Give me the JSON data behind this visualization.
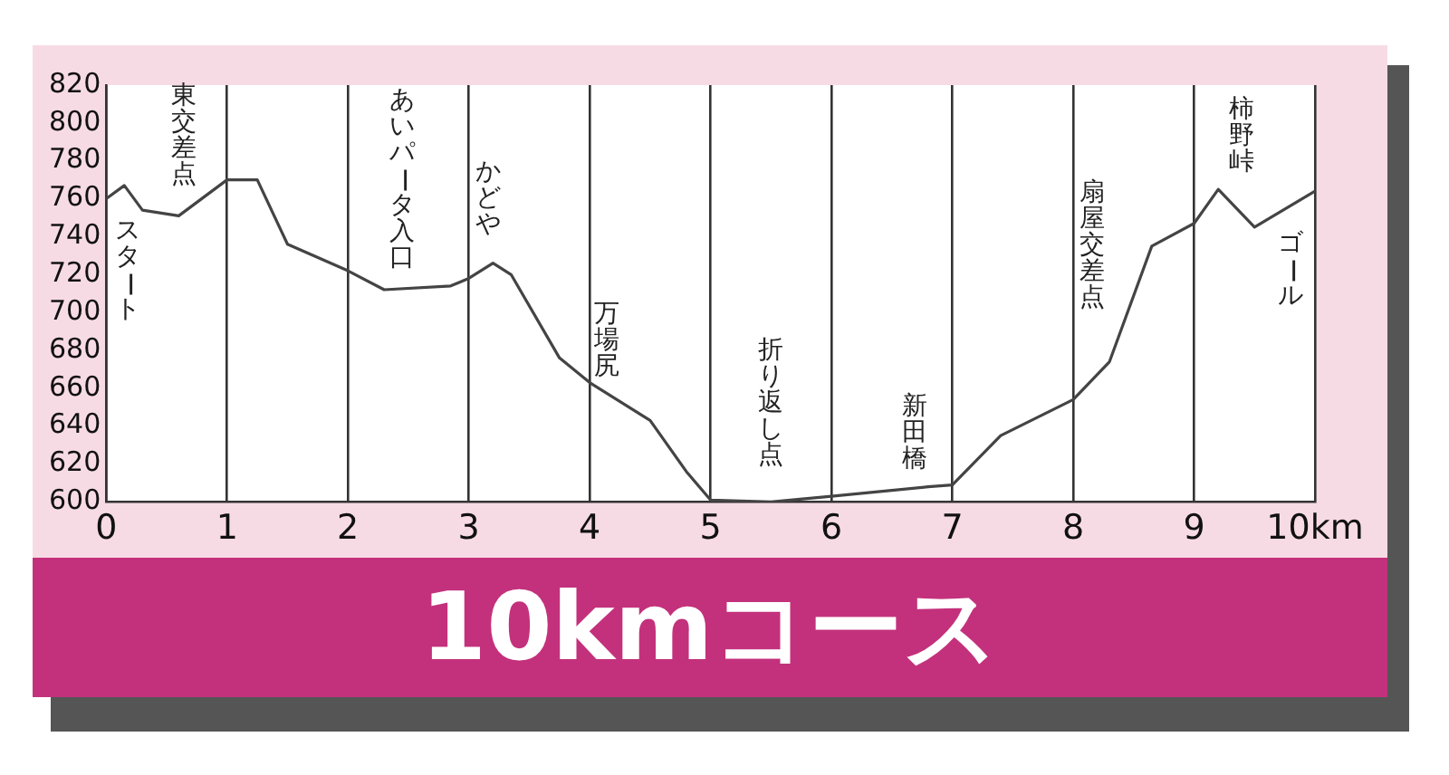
{
  "chart_data": {
    "type": "line",
    "title": "10kmコース",
    "x": [
      0,
      0.15,
      0.3,
      0.6,
      1.0,
      1.25,
      1.5,
      2.0,
      2.3,
      2.85,
      3.0,
      3.2,
      3.35,
      3.75,
      4.0,
      4.5,
      4.8,
      5.0,
      5.5,
      6.0,
      6.8,
      7.0,
      7.4,
      8.0,
      8.3,
      8.65,
      9.0,
      9.2,
      9.5,
      10.0
    ],
    "series": [
      {
        "color": "#444444",
        "values": [
          760,
          767,
          754,
          751,
          770,
          770,
          736,
          722,
          712,
          714,
          718,
          726,
          720,
          676,
          663,
          643,
          616,
          601,
          600,
          603,
          608,
          609,
          635,
          654,
          674,
          735,
          747,
          765,
          745,
          764
        ]
      }
    ],
    "xlim": [
      0,
      10
    ],
    "xticks": [
      0,
      1,
      2,
      3,
      4,
      5,
      6,
      7,
      8,
      9,
      {
        "value": 10,
        "label": "10km"
      }
    ],
    "ylim": [
      600,
      820
    ],
    "yticks": [
      600,
      620,
      640,
      660,
      680,
      700,
      720,
      740,
      760,
      780,
      800,
      820
    ],
    "grid": "x",
    "legend": false,
    "marker": "none",
    "line_style": "solid",
    "annotations": [
      "スタート",
      "東交差点",
      "あいパータ入口",
      "かどや",
      "万場尻",
      "折り返し点",
      "新田橋",
      "扇屋交差点",
      "柿野峠",
      "ゴール"
    ]
  }
}
